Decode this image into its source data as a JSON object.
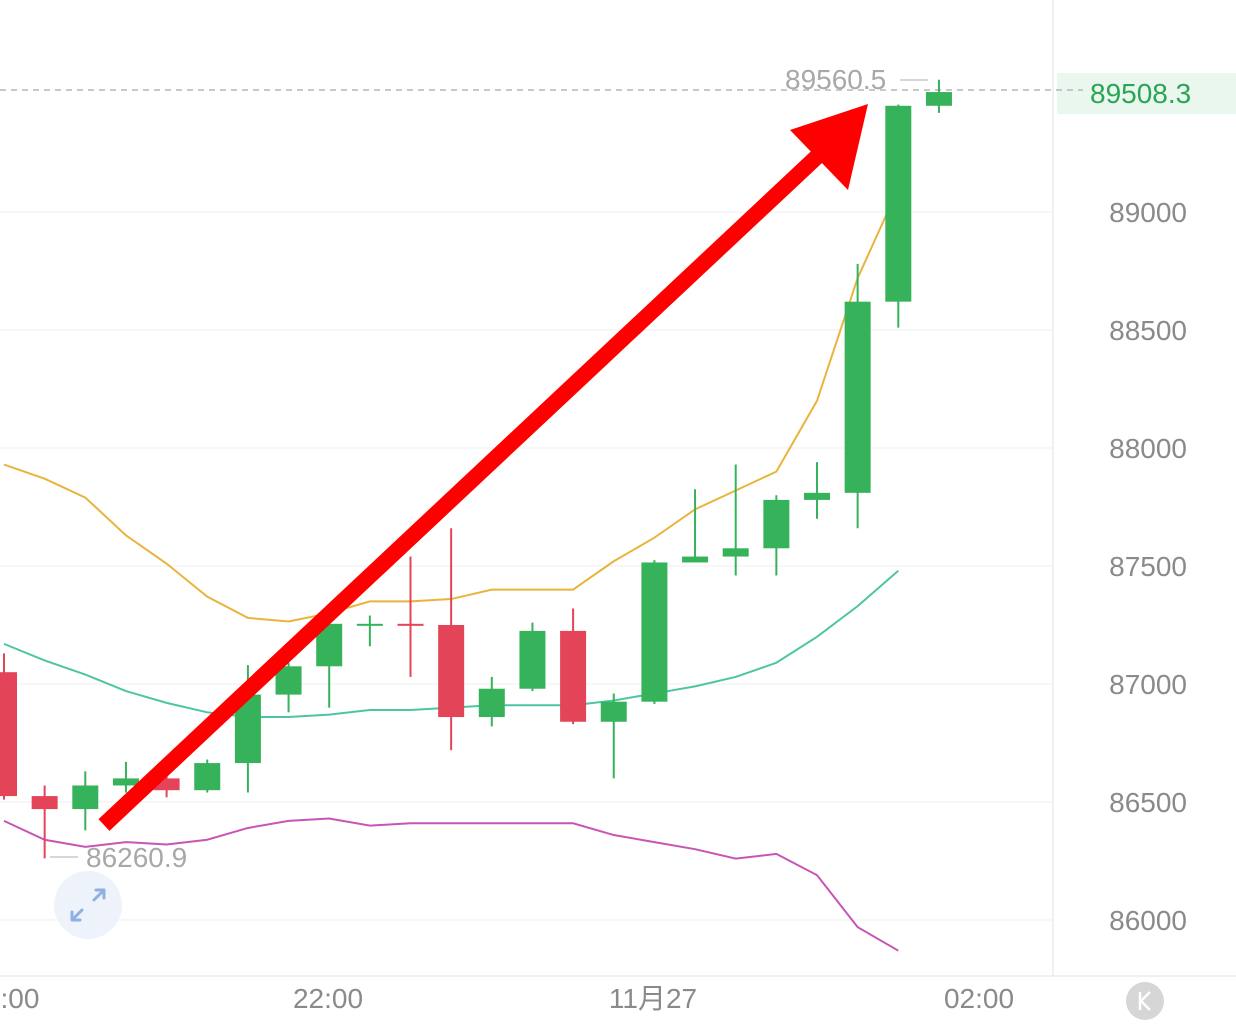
{
  "chart_data": {
    "type": "candlestick",
    "title": "",
    "ylabel": "",
    "xlabel": "",
    "ylim": [
      85750,
      89890
    ],
    "y_ticks": [
      86000,
      86500,
      87000,
      87500,
      88000,
      88500,
      89000
    ],
    "x_tick_labels": [
      ":00",
      "22:00",
      "11月27",
      "02:00"
    ],
    "last_price": "89508.3",
    "max_label": "89560.5",
    "min_label": "86260.9",
    "grid": true,
    "colors": {
      "up": "#36b35a",
      "down": "#e34457",
      "ma_yellow": "#e8b43c",
      "band_upper": "#4cc5a4",
      "band_lower": "#c755b5",
      "arrow": "#ff0000",
      "last_price_text": "#2aa556",
      "last_price_bg": "#e9f7ee"
    },
    "candles": [
      {
        "o": 87050,
        "h": 87130,
        "l": 86510,
        "c": 86525
      },
      {
        "o": 86525,
        "h": 86570,
        "l": 86260.9,
        "c": 86470
      },
      {
        "o": 86470,
        "h": 86630,
        "l": 86380,
        "c": 86570
      },
      {
        "o": 86570,
        "h": 86670,
        "l": 86540,
        "c": 86600
      },
      {
        "o": 86600,
        "h": 86610,
        "l": 86520,
        "c": 86550
      },
      {
        "o": 86550,
        "h": 86680,
        "l": 86540,
        "c": 86665
      },
      {
        "o": 86665,
        "h": 87080,
        "l": 86540,
        "c": 86955
      },
      {
        "o": 86955,
        "h": 87090,
        "l": 86880,
        "c": 87075
      },
      {
        "o": 87075,
        "h": 87270,
        "l": 86900,
        "c": 87255
      },
      {
        "o": 87255,
        "h": 87290,
        "l": 87160,
        "c": 87255
      },
      {
        "o": 87255,
        "h": 87540,
        "l": 87030,
        "c": 87250
      },
      {
        "o": 87250,
        "h": 87660,
        "l": 86720,
        "c": 86860
      },
      {
        "o": 86860,
        "h": 87030,
        "l": 86820,
        "c": 86980
      },
      {
        "o": 86980,
        "h": 87260,
        "l": 86970,
        "c": 87225
      },
      {
        "o": 87225,
        "h": 87320,
        "l": 86830,
        "c": 86840
      },
      {
        "o": 86840,
        "h": 86960,
        "l": 86600,
        "c": 86925
      },
      {
        "o": 86925,
        "h": 87525,
        "l": 86915,
        "c": 87515
      },
      {
        "o": 87515,
        "h": 87825,
        "l": 87515,
        "c": 87540
      },
      {
        "o": 87540,
        "h": 87930,
        "l": 87460,
        "c": 87575
      },
      {
        "o": 87575,
        "h": 87800,
        "l": 87460,
        "c": 87780
      },
      {
        "o": 87780,
        "h": 87940,
        "l": 87700,
        "c": 87810
      },
      {
        "o": 87810,
        "h": 88780,
        "l": 87660,
        "c": 88620
      },
      {
        "o": 88620,
        "h": 89455,
        "l": 88510,
        "c": 89450
      },
      {
        "o": 89450,
        "h": 89560.5,
        "l": 89420,
        "c": 89508.3
      }
    ],
    "ma_yellow": [
      87930,
      87870,
      87790,
      87630,
      87510,
      87370,
      87280,
      87265,
      87300,
      87350,
      87350,
      87360,
      87400,
      87400,
      87400,
      87520,
      87620,
      87740,
      87820,
      87900,
      88200,
      88720,
      89100
    ],
    "band_upper": [
      87170,
      87100,
      87040,
      86970,
      86920,
      86880,
      86860,
      86860,
      86870,
      86890,
      86890,
      86900,
      86910,
      86910,
      86910,
      86930,
      86960,
      86990,
      87030,
      87090,
      87200,
      87330,
      87480
    ],
    "band_lower": [
      86420,
      86340,
      86310,
      86330,
      86320,
      86340,
      86390,
      86420,
      86430,
      86400,
      86410,
      86410,
      86410,
      86410,
      86410,
      86360,
      86330,
      86300,
      86260,
      86280,
      86190,
      85970,
      85870
    ]
  }
}
